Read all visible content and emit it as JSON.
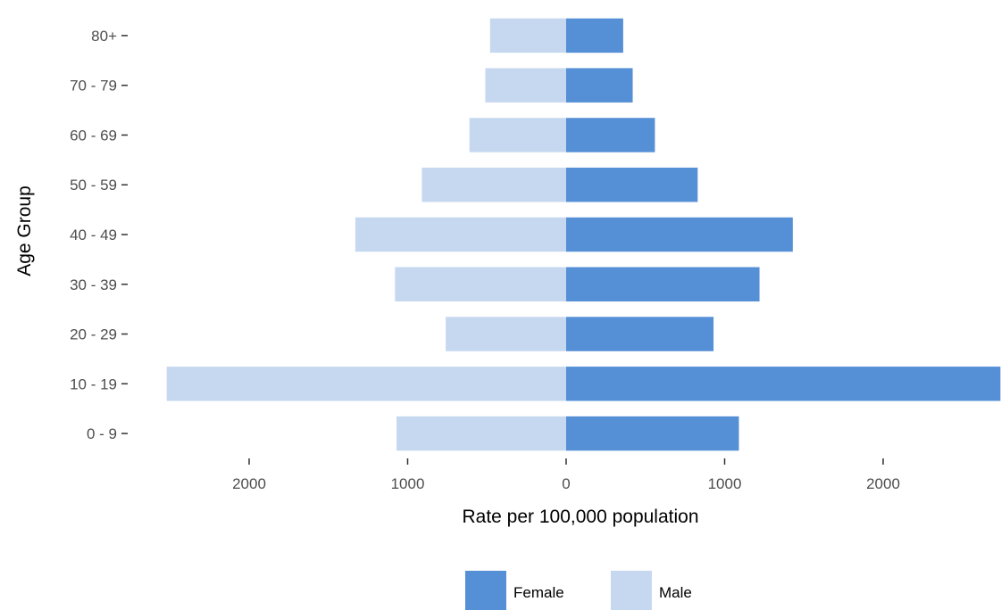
{
  "chart_data": {
    "type": "bar",
    "orientation": "horizontal",
    "layout": "population-pyramid",
    "categories": [
      "0 - 9",
      "10 - 19",
      "20 - 29",
      "30 - 39",
      "40 - 49",
      "50 - 59",
      "60 - 69",
      "70 - 79",
      "80+"
    ],
    "series": [
      {
        "name": "Female",
        "side": "right",
        "color": "#5590d6",
        "values": [
          1090,
          2740,
          930,
          1220,
          1430,
          830,
          560,
          420,
          360
        ]
      },
      {
        "name": "Male",
        "side": "left",
        "color": "#c6d8f0",
        "values": [
          1070,
          2520,
          760,
          1080,
          1330,
          910,
          610,
          510,
          480
        ]
      }
    ],
    "xlabel": "Rate per 100,000 population",
    "ylabel": "Age Group",
    "xlim": [
      -2570,
      2740
    ],
    "x_ticks": [
      {
        "value": -2000,
        "label": "2000"
      },
      {
        "value": -1000,
        "label": "1000"
      },
      {
        "value": 0,
        "label": "0"
      },
      {
        "value": 1000,
        "label": "1000"
      },
      {
        "value": 2000,
        "label": "2000"
      }
    ],
    "grid": false,
    "legend_position": "bottom"
  }
}
